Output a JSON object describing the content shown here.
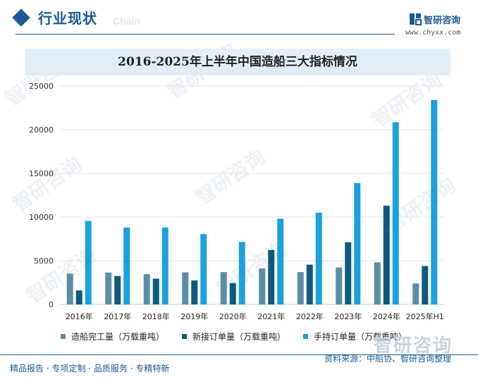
{
  "header": {
    "title": "行业现状",
    "title_ghost": "Chain",
    "logo_text": "智研咨询",
    "logo_url": "www.chyxx.com"
  },
  "colors": {
    "brand": "#1a5a96",
    "series1": "#5b8ea6",
    "series2": "#0e5a7f",
    "series3": "#1aa1de"
  },
  "chart_data": {
    "type": "bar",
    "title": "2016-2025年上半年中国造船三大指标情况",
    "categories": [
      "2016年",
      "2017年",
      "2018年",
      "2019年",
      "2020年",
      "2021年",
      "2022年",
      "2023年",
      "2024年",
      "2025年H1"
    ],
    "series": [
      {
        "name": "造船完工量（万载重吨）",
        "values": [
          3530,
          3650,
          3460,
          3670,
          3700,
          4120,
          3700,
          4230,
          4820,
          2400
        ]
      },
      {
        "name": "新接订单量（万载重吨）",
        "values": [
          1600,
          3250,
          2950,
          2750,
          2450,
          6230,
          4550,
          7120,
          11300,
          4400
        ]
      },
      {
        "name": "手持订单量（万载重吨）",
        "values": [
          9550,
          8800,
          8800,
          8050,
          7150,
          9800,
          10500,
          13900,
          20850,
          23400
        ]
      }
    ],
    "ylim": [
      0,
      25000
    ],
    "yticks": [
      0,
      5000,
      10000,
      15000,
      20000,
      25000
    ],
    "grid": true,
    "legend": "bottom"
  },
  "footer": {
    "left": "精品报告 · 专项定制 · 品质服务 · 专精特新",
    "right": "资料来源：中船协、智研咨询整理"
  },
  "watermark": "智研咨询"
}
